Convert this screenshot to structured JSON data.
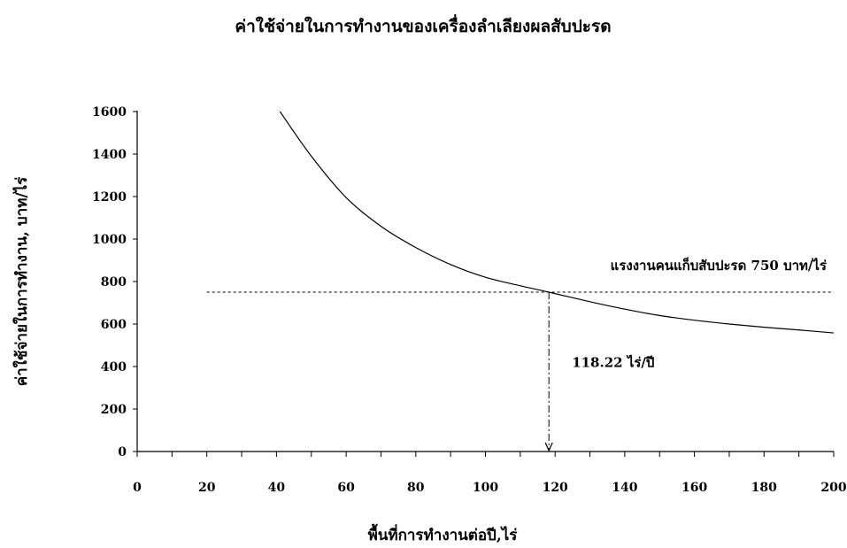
{
  "chart_data": {
    "type": "line",
    "title": "ค่าใช้จ่ายในการทำงานของเครื่องลำเลียงผลสับปะรด",
    "xlabel": "พื้นที่การทำงานต่อปี,ไร่",
    "ylabel": "ค่าใช้จ่ายในการทำงาน, บาท/ไร่",
    "xlim": [
      0,
      200
    ],
    "ylim": [
      0,
      1600
    ],
    "x_ticks": [
      "0",
      "20",
      "40",
      "60",
      "80",
      "100",
      "120",
      "140",
      "160",
      "180",
      "200"
    ],
    "y_ticks": [
      "0",
      "200",
      "400",
      "600",
      "800",
      "1000",
      "1200",
      "1400",
      "1600"
    ],
    "grid": false,
    "legend": "none",
    "series": [
      {
        "points": [
          [
            41,
            1600
          ],
          [
            50,
            1390
          ],
          [
            60,
            1195
          ],
          [
            70,
            1060
          ],
          [
            80,
            960
          ],
          [
            90,
            880
          ],
          [
            100,
            820
          ],
          [
            110,
            780
          ],
          [
            118.22,
            750
          ],
          [
            130,
            705
          ],
          [
            140,
            670
          ],
          [
            150,
            640
          ],
          [
            160,
            618
          ],
          [
            170,
            600
          ],
          [
            180,
            585
          ],
          [
            190,
            572
          ],
          [
            200,
            558
          ]
        ],
        "color": "#000000"
      }
    ],
    "reference_line": {
      "y": 750,
      "x_start": 20,
      "x_end": 200,
      "label": "แรงงานคนแก็บสับปะรด 750 บาท/ไร่"
    },
    "intersection": {
      "x": 118.22,
      "y": 750,
      "label": "118.22 ไร่/ปี"
    }
  }
}
